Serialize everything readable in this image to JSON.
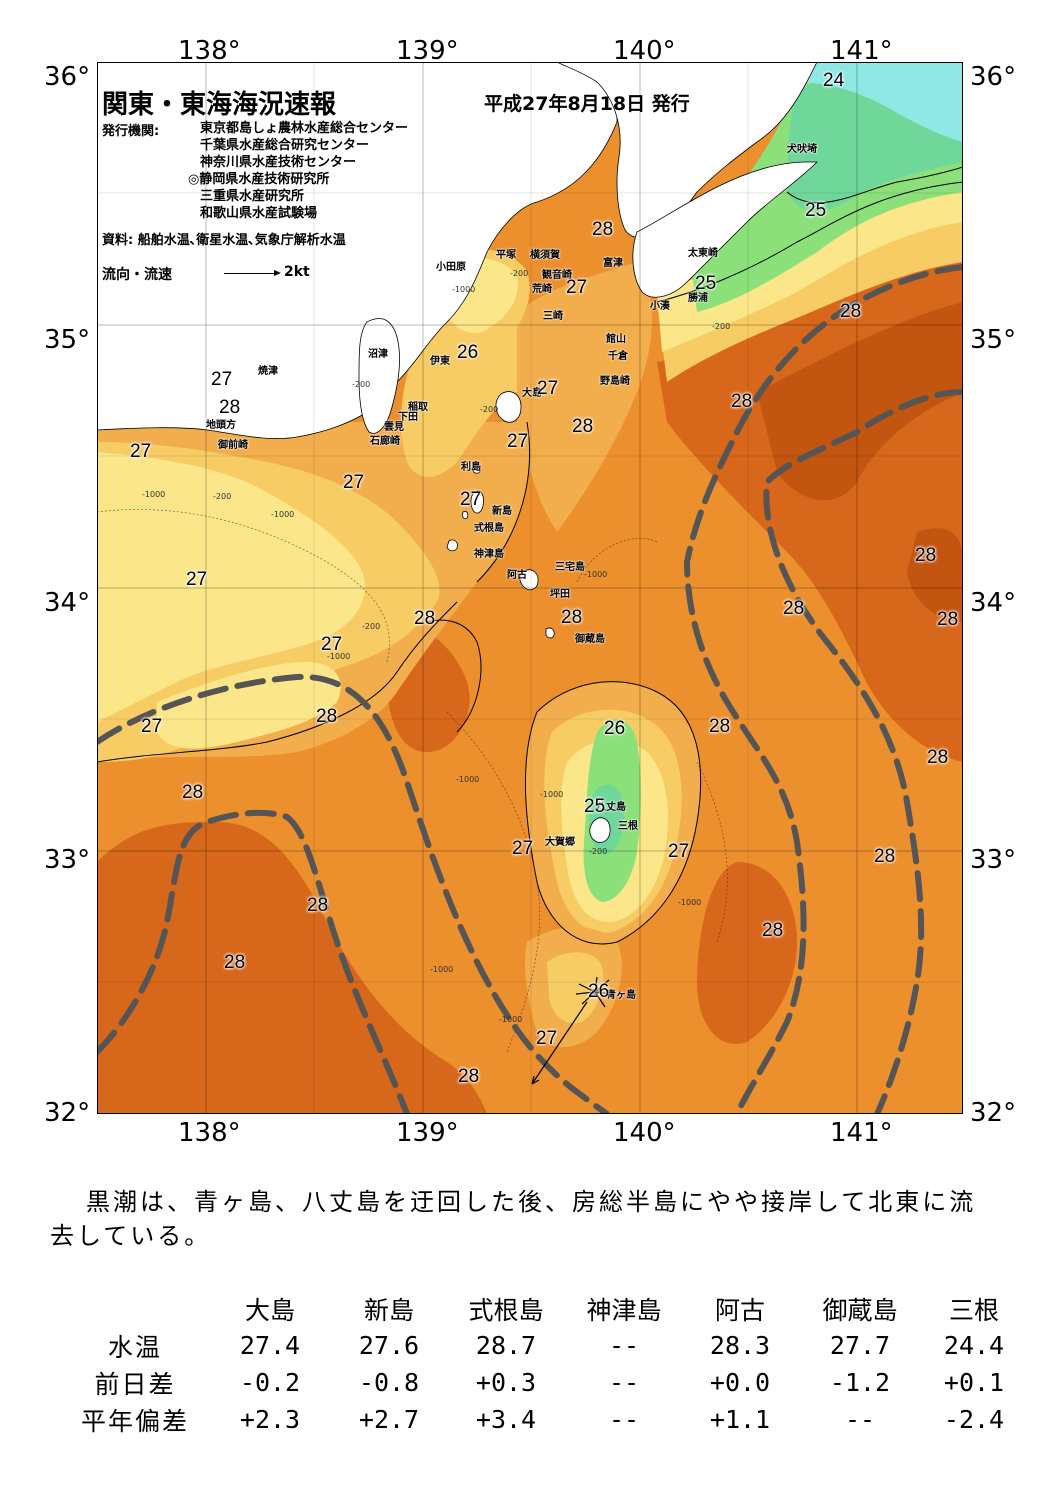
{
  "map": {
    "title": "関東・東海海況速報",
    "date": "平成27年8月18日 発行",
    "org_label": "発行機関:",
    "organizations": [
      "東京都島しょ農林水産総合センター",
      "千葉県水産総合研究センター",
      "神奈川県水産技術センター",
      "◎静岡県水産技術研究所",
      "三重県水産研究所",
      "和歌山県水産試験場"
    ],
    "source": "資料: 船舶水温､衛星水温､気象庁解析水温",
    "legend_label": "流向・流速",
    "legend_scale": "2kt",
    "longitude_labels": [
      "138°",
      "139°",
      "140°",
      "141°"
    ],
    "latitude_labels": [
      "36°",
      "35°",
      "34°",
      "33°",
      "32°"
    ],
    "place_names": [
      "犬吠埼",
      "太東崎",
      "勝浦",
      "小湊",
      "館山",
      "千倉",
      "野島崎",
      "富津",
      "横須賀",
      "観音崎",
      "平塚",
      "荒崎",
      "三崎",
      "小田原",
      "沼津",
      "伊東",
      "大島",
      "稲取",
      "下田",
      "雲見",
      "石廊崎",
      "焼津",
      "地頭方",
      "御前崎",
      "利島",
      "新島",
      "式根島",
      "神津島",
      "三宅島",
      "阿古",
      "坪田",
      "御蔵島",
      "八丈島",
      "三根",
      "大賀郷",
      "青ヶ島"
    ],
    "isotherm_labels": [
      "24",
      "25",
      "25",
      "28",
      "27",
      "28",
      "28",
      "27",
      "26",
      "27",
      "27",
      "28",
      "28",
      "27",
      "27",
      "27",
      "27",
      "28",
      "28",
      "28",
      "28",
      "27",
      "27",
      "28",
      "28",
      "28",
      "28",
      "28",
      "26",
      "28",
      "28",
      "25",
      "27",
      "27",
      "27",
      "28",
      "28",
      "28",
      "28",
      "26",
      "27",
      "28"
    ],
    "depth_labels": [
      "-200",
      "-200",
      "-1000",
      "-1000",
      "-1000",
      "-1000",
      "-1000",
      "-1000",
      "-1000",
      "-1000",
      "-1000",
      "-1000",
      "-200",
      "-200",
      "-200",
      "-200",
      "-200"
    ]
  },
  "summary": "黒潮は、青ヶ島、八丈島を迂回した後、房総半島にやや接岸して北東に流去している。",
  "observation_table": {
    "columns": [
      "大島",
      "新島",
      "式根島",
      "神津島",
      "阿古",
      "御蔵島",
      "三根"
    ],
    "rows": [
      {
        "label": "水温",
        "values": [
          "27.4",
          "27.6",
          "28.7",
          "--",
          "28.3",
          "27.7",
          "24.4"
        ]
      },
      {
        "label": "前日差",
        "values": [
          "-0.2",
          "-0.8",
          "+0.3",
          "--",
          "+0.0",
          "-1.2",
          "+0.1"
        ]
      },
      {
        "label": "平年偏差",
        "values": [
          "+2.3",
          "+2.7",
          "+3.4",
          "--",
          "+1.1",
          "--",
          "-2.4"
        ]
      }
    ]
  },
  "colors": {
    "temp_24": "#8fe8e3",
    "temp_25": "#6fd79a",
    "temp_26": "#8be07a",
    "temp_26_5": "#fbe789",
    "temp_27": "#f7cc65",
    "temp_27_5": "#f2ad4c",
    "temp_28": "#ec8f2d",
    "temp_28_5": "#d7671a",
    "temp_29": "#c25510",
    "land": "#ffffff",
    "kuroshio_axis": "#555555"
  }
}
